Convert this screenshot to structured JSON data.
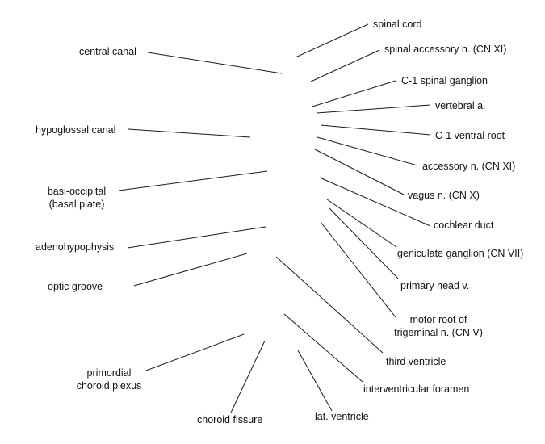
{
  "labels": {
    "spinal_cord": "spinal cord",
    "spinal_accessory": "spinal accessory n. (CN XI)",
    "c1_spinal_ganglion": "C-1 spinal ganglion",
    "vertebral_a": "vertebral a.",
    "c1_ventral_root": "C-1 ventral root",
    "accessory_n": "accessory n. (CN XI)",
    "vagus_n": "vagus n. (CN X)",
    "cochlear_duct": "cochlear duct",
    "geniculate_ganglion": "geniculate ganglion (CN VII)",
    "primary_head_v": "primary head v.",
    "motor_root_line1": "motor root of",
    "motor_root_line2": "trigeminal n. (CN V)",
    "third_ventricle": "third ventricle",
    "interventricular_foramen": "interventricular foramen",
    "lat_ventricle": "lat. ventricle",
    "choroid_fissure": "choroid fissure",
    "primordial_line1": "primordial",
    "primordial_line2": "choroid plexus",
    "optic_groove": "optic groove",
    "adenohypophysis": "adenohypophysis",
    "basi_occipital_line1": "basi-occipital",
    "basi_occipital_line2": "(basal plate)",
    "hypoglossal_canal": "hypoglossal canal",
    "central_canal": "central canal"
  }
}
